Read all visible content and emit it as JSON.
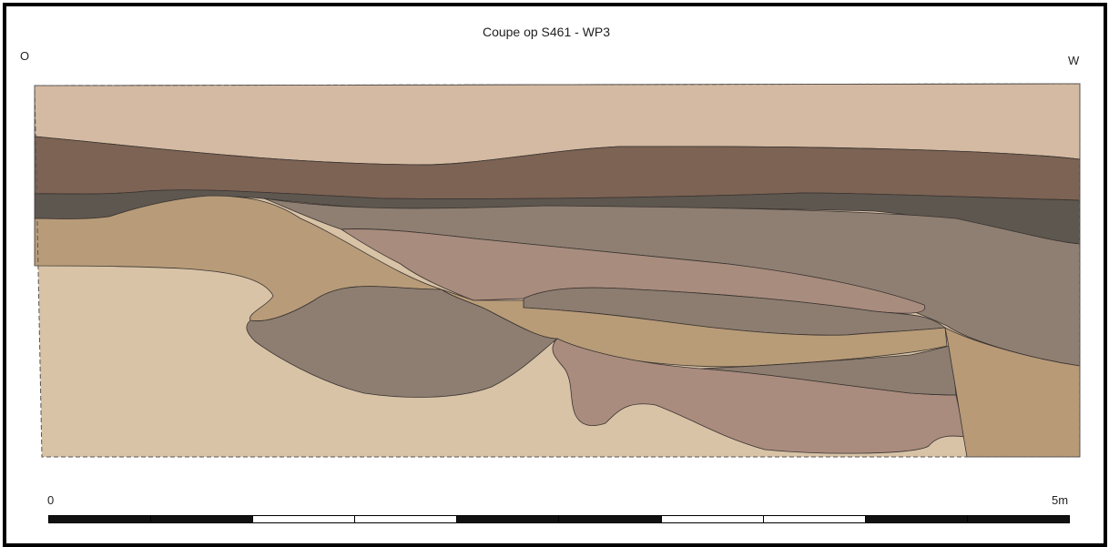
{
  "title": "Coupe op S461 - WP3",
  "orientation": {
    "left": "O",
    "right": "W"
  },
  "scale": {
    "start_label": "0",
    "end_label": "5m",
    "segment_colors": [
      "#111111",
      "#111111",
      "#ffffff",
      "#ffffff",
      "#111111",
      "#111111",
      "#ffffff",
      "#ffffff",
      "#111111",
      "#111111"
    ]
  },
  "colors": {
    "background_layer": "#d8c3a7",
    "top_layer": "#d6bda4",
    "dark_brown_layer": "#7d6455",
    "dark_grey_layer": "#5d5650",
    "grey_brown_layer": "#8e7f72",
    "tan_layer": "#b89c78",
    "pink_brown_layer": "#a98c7e",
    "outline": "#3a3330"
  }
}
